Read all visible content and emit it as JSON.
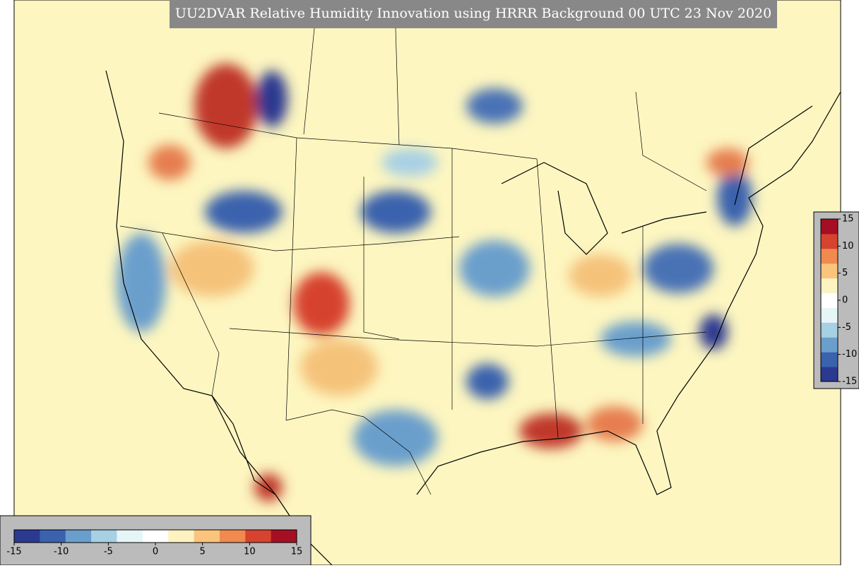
{
  "title": "UU2DVAR Relative Humidity Innovation using HRRR Background 00 UTC 23 Nov 2020",
  "colorbar": {
    "range": [
      -15,
      15
    ],
    "ticks": [
      -15,
      -10,
      -5,
      0,
      5,
      10,
      15
    ],
    "colors": [
      "#2b3990",
      "#3a62ad",
      "#6a9fcc",
      "#a8d0e4",
      "#e6f5f8",
      "#ffffff",
      "#fdf3c0",
      "#fbc47c",
      "#f08a4f",
      "#d7432f",
      "#a50f24"
    ]
  }
}
